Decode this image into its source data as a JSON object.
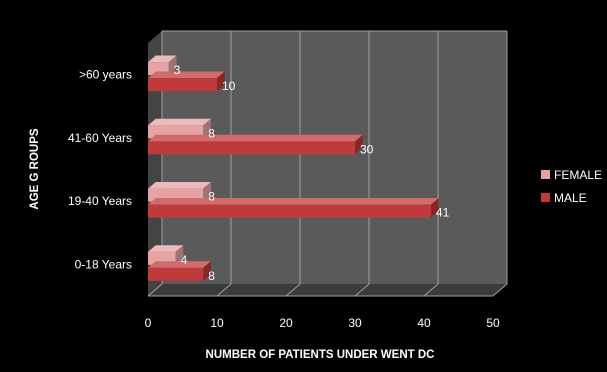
{
  "chart_data": {
    "type": "bar",
    "orientation": "horizontal",
    "three_d": true,
    "categories": [
      "0-18 Years",
      "19-40 Years",
      "41-60 Years",
      ">60 years"
    ],
    "series": [
      {
        "name": "FEMALE",
        "values": [
          4,
          8,
          8,
          3
        ],
        "color": "#e6a3a3"
      },
      {
        "name": "MALE",
        "values": [
          8,
          41,
          30,
          10
        ],
        "color": "#c0393b"
      }
    ],
    "xlabel": "NUMBER OF PATIENTS UNDER WENT DC",
    "ylabel": "AGE G ROUPS",
    "xlim": [
      0,
      50
    ],
    "xticks": [
      "0",
      "10",
      "20",
      "30",
      "40",
      "50"
    ],
    "grid": true,
    "legend_position": "right",
    "colors": {
      "background": "#000000",
      "plot_wall": "#5a5a5a",
      "grid": "#a0a0a0",
      "text": "#ffffff"
    }
  }
}
